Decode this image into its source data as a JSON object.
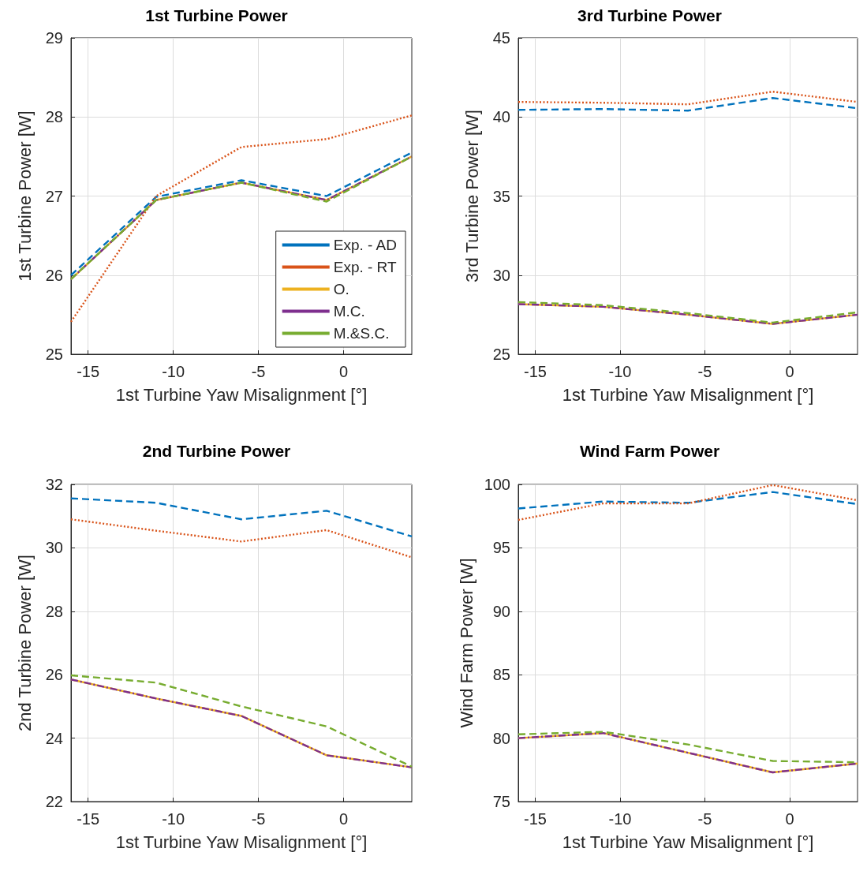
{
  "chart_data": [
    {
      "type": "line",
      "title": "1st Turbine Power",
      "xlabel": "1st Turbine Yaw Misalignment [°]",
      "ylabel": "1st Turbine Power [W]",
      "xlim": [
        -16,
        4
      ],
      "xticks": [
        -15,
        -10,
        -5,
        0
      ],
      "ylim": [
        25,
        29
      ],
      "yticks": [
        25,
        26,
        27,
        28,
        29
      ],
      "grid": true,
      "legend": "bottom right",
      "marker": "none",
      "x": [
        -16,
        -11,
        -6,
        -1,
        4
      ],
      "series": [
        {
          "name": "Exp. - AD",
          "color": "#0072bd",
          "line_style": "dashed",
          "values": [
            26.0,
            26.99,
            27.2,
            27.0,
            27.55
          ]
        },
        {
          "name": "Exp. - RT",
          "color": "#d95319",
          "line_style": "dotted",
          "values": [
            25.41,
            27.0,
            27.62,
            27.72,
            28.02
          ]
        },
        {
          "name": "O.",
          "color": "#edb120",
          "line_style": "solid",
          "values": [
            25.95,
            26.95,
            27.17,
            26.95,
            27.5
          ]
        },
        {
          "name": "M.C.",
          "color": "#7e2f8e",
          "line_style": "dashdot",
          "values": [
            25.95,
            26.95,
            27.17,
            26.95,
            27.5
          ]
        },
        {
          "name": "M.&S.C.",
          "color": "#77ac30",
          "line_style": "dashed",
          "values": [
            25.95,
            26.95,
            27.17,
            26.93,
            27.5
          ]
        }
      ]
    },
    {
      "type": "line",
      "title": "3rd Turbine Power",
      "xlabel": "1st Turbine Yaw Misalignment [°]",
      "ylabel": "3rd Turbine Power [W]",
      "xlim": [
        -16,
        4
      ],
      "xticks": [
        -15,
        -10,
        -5,
        0
      ],
      "ylim": [
        25,
        45
      ],
      "yticks": [
        25,
        30,
        35,
        40,
        45
      ],
      "grid": true,
      "legend": false,
      "marker": "none",
      "x": [
        -16,
        -11,
        -6,
        -1,
        4
      ],
      "series": [
        {
          "color": "#0072bd",
          "line_style": "dashed",
          "values": [
            40.45,
            40.5,
            40.4,
            41.2,
            40.55
          ]
        },
        {
          "color": "#d95319",
          "line_style": "dotted",
          "values": [
            40.95,
            40.9,
            40.8,
            41.6,
            40.95
          ]
        },
        {
          "color": "#edb120",
          "line_style": "solid",
          "values": [
            28.17,
            28.0,
            27.5,
            26.92,
            27.5
          ]
        },
        {
          "color": "#7e2f8e",
          "line_style": "dashdot",
          "values": [
            28.17,
            28.0,
            27.5,
            26.92,
            27.5
          ]
        },
        {
          "color": "#77ac30",
          "line_style": "dashed",
          "values": [
            28.3,
            28.1,
            27.6,
            27.0,
            27.65
          ]
        }
      ]
    },
    {
      "type": "line",
      "title": "2nd Turbine Power",
      "xlabel": "1st Turbine Yaw Misalignment [°]",
      "ylabel": "2nd Turbine Power [W]",
      "xlim": [
        -16,
        4
      ],
      "xticks": [
        -15,
        -10,
        -5,
        0
      ],
      "ylim": [
        22,
        32
      ],
      "yticks": [
        22,
        24,
        26,
        28,
        30,
        32
      ],
      "grid": true,
      "legend": false,
      "marker": "none",
      "x": [
        -16,
        -11,
        -6,
        -1,
        4
      ],
      "series": [
        {
          "color": "#0072bd",
          "line_style": "dashed",
          "values": [
            31.56,
            31.42,
            30.9,
            31.17,
            30.36
          ]
        },
        {
          "color": "#d95319",
          "line_style": "dotted",
          "values": [
            30.9,
            30.54,
            30.2,
            30.56,
            29.7
          ]
        },
        {
          "color": "#edb120",
          "line_style": "solid",
          "values": [
            25.85,
            25.25,
            24.7,
            23.46,
            23.08
          ]
        },
        {
          "color": "#7e2f8e",
          "line_style": "dashdot",
          "values": [
            25.85,
            25.25,
            24.7,
            23.46,
            23.08
          ]
        },
        {
          "color": "#77ac30",
          "line_style": "dashed",
          "values": [
            25.98,
            25.75,
            25.0,
            24.37,
            23.1
          ]
        }
      ]
    },
    {
      "type": "line",
      "title": "Wind Farm Power",
      "xlabel": "1st Turbine Yaw Misalignment [°]",
      "ylabel": "Wind Farm Power [W]",
      "xlim": [
        -16,
        4
      ],
      "xticks": [
        -15,
        -10,
        -5,
        0
      ],
      "ylim": [
        75,
        100
      ],
      "yticks": [
        75,
        80,
        85,
        90,
        95,
        100
      ],
      "grid": true,
      "legend": false,
      "marker": "none",
      "x": [
        -16,
        -11,
        -6,
        -1,
        4
      ],
      "series": [
        {
          "color": "#0072bd",
          "line_style": "dashed",
          "values": [
            98.1,
            98.65,
            98.55,
            99.4,
            98.45
          ]
        },
        {
          "color": "#d95319",
          "line_style": "dotted",
          "values": [
            97.2,
            98.5,
            98.5,
            99.95,
            98.75
          ]
        },
        {
          "color": "#edb120",
          "line_style": "solid",
          "values": [
            80.0,
            80.4,
            78.85,
            77.3,
            78.0
          ]
        },
        {
          "color": "#7e2f8e",
          "line_style": "dashdot",
          "values": [
            80.0,
            80.4,
            78.85,
            77.3,
            78.0
          ]
        },
        {
          "color": "#77ac30",
          "line_style": "dashed",
          "values": [
            80.3,
            80.5,
            79.5,
            78.2,
            78.1
          ]
        }
      ]
    }
  ]
}
